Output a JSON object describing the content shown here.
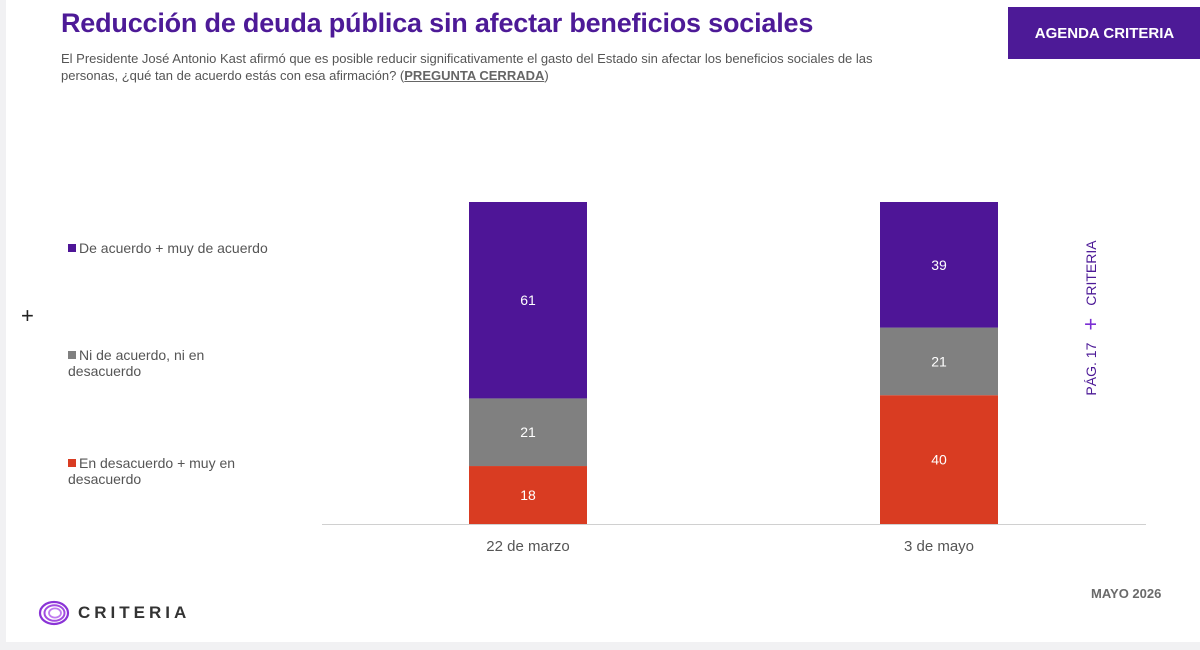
{
  "header": {
    "title": "Reducción de deuda pública sin afectar beneficios sociales",
    "subtitle": "El Presidente José Antonio Kast afirmó que es posible reducir significativamente el gasto del Estado sin afectar los beneficios sociales de las personas, ¿qué tan de acuerdo estás con esa afirmación? (",
    "subtitle_tag": "PREGUNTA CERRADA",
    "subtitle_end": ")",
    "badge": "AGENDA CRITERIA"
  },
  "side": {
    "page_label": "PÁG. 17",
    "brand_label": "CRITERIA"
  },
  "footer": {
    "logo_text": "CRITERIA",
    "date": "MAYO 2026"
  },
  "colors": {
    "accent": "#4d1a97",
    "agree": "#4e1597",
    "neutral": "#808080",
    "disagree": "#d93c22"
  },
  "chart_data": {
    "type": "bar",
    "stacked": true,
    "categories": [
      "22 de marzo",
      "3 de mayo"
    ],
    "series": [
      {
        "name": "En desacuerdo + muy en desacuerdo",
        "values": [
          18,
          40
        ],
        "color": "#d93c22"
      },
      {
        "name": "Ni de acuerdo, ni en desacuerdo",
        "values": [
          21,
          21
        ],
        "color": "#808080"
      },
      {
        "name": "De acuerdo + muy de acuerdo",
        "values": [
          61,
          39
        ],
        "color": "#4e1597"
      }
    ],
    "legend_order": [
      {
        "name": "De acuerdo + muy de acuerdo",
        "color": "#4e1597"
      },
      {
        "name": "Ni de acuerdo, ni en desacuerdo",
        "color": "#808080"
      },
      {
        "name": "En desacuerdo + muy en desacuerdo",
        "color": "#d93c22"
      }
    ],
    "ylim": [
      0,
      100
    ],
    "legend_position": "left",
    "grid": false,
    "data_labels": true
  }
}
